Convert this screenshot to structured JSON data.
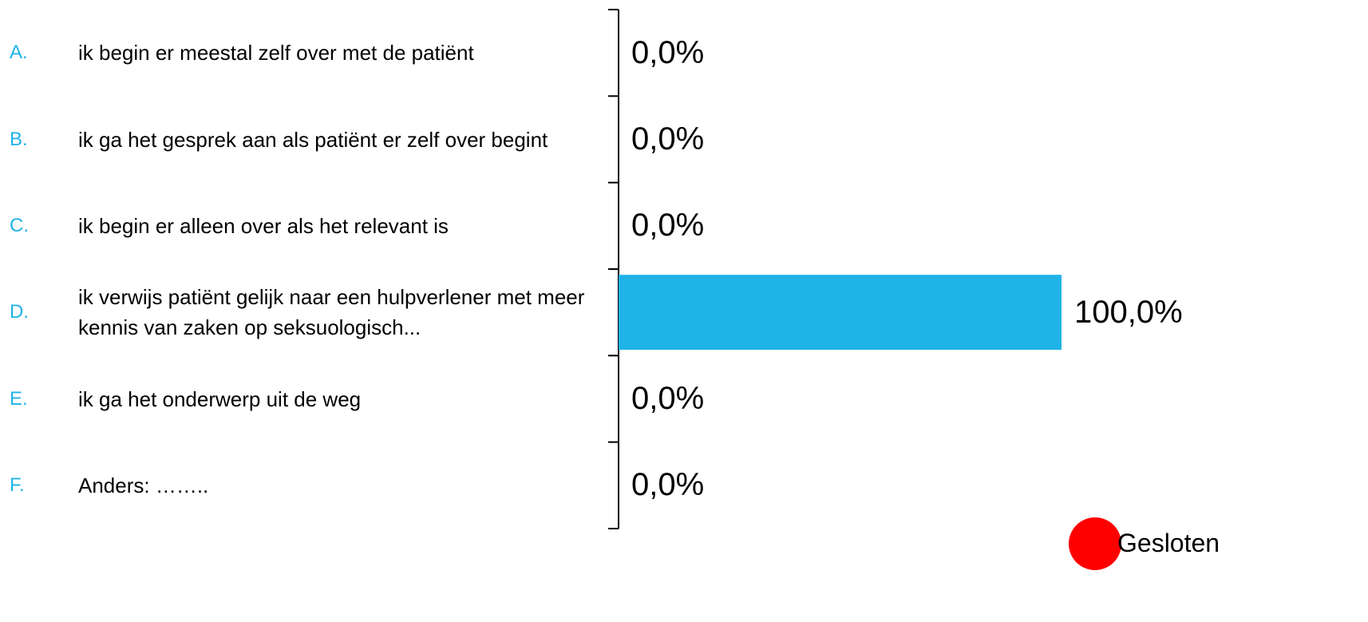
{
  "chart_data": {
    "type": "bar",
    "orientation": "horizontal",
    "letters": [
      "A.",
      "B.",
      "C.",
      "D.",
      "E.",
      "F."
    ],
    "categories": [
      "ik begin er meestal zelf over met de patiënt",
      "ik ga het gesprek aan als patiënt er zelf over begint",
      "ik begin er alleen over als het relevant is",
      "ik verwijs patiënt gelijk naar een hulpverlener met meer kennis van zaken op seksuologisch...",
      "ik ga het onderwerp uit de weg",
      "Anders: …….."
    ],
    "values": [
      0,
      0,
      0,
      100,
      0,
      0
    ],
    "value_labels": [
      "0,0%",
      "0,0%",
      "0,0%",
      "100,0%",
      "0,0%",
      "0,0%"
    ],
    "color": "#1fb3e8",
    "letter_color": "#1fb3e8",
    "xlim": [
      0,
      100
    ]
  },
  "status": {
    "label": "Gesloten",
    "color": "#ff0000"
  }
}
